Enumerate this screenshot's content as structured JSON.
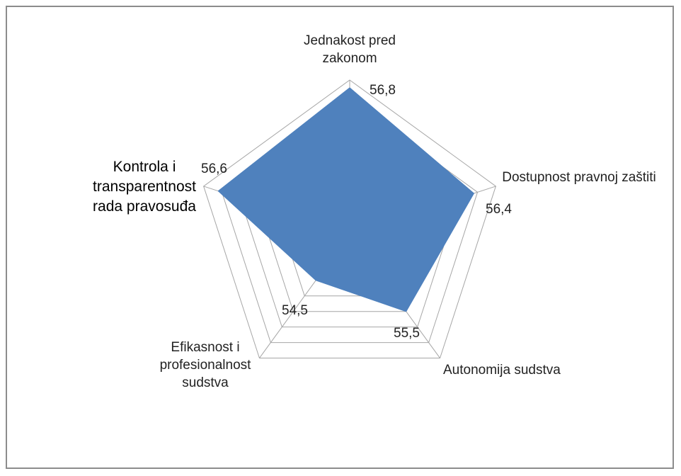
{
  "chart_data": {
    "type": "radar",
    "categories": [
      "Jednakost pred zakonom",
      "Dostupnost pravnoj zaštiti",
      "Autonomija sudstva",
      "Efikasnost i profesionalnost sudstva",
      "Kontrola i transparentnost rada pravosuđa"
    ],
    "values": [
      56.8,
      56.4,
      55.5,
      54.5,
      56.6
    ],
    "value_labels": [
      "56,8",
      "56,4",
      "55,5",
      "54,5",
      "56,6"
    ],
    "color": "#4f81bd",
    "ylim": [
      53,
      57
    ],
    "yticks": [
      53,
      53.5,
      54,
      54.5,
      55,
      55.5,
      56,
      56.5,
      57
    ],
    "grid": true
  }
}
